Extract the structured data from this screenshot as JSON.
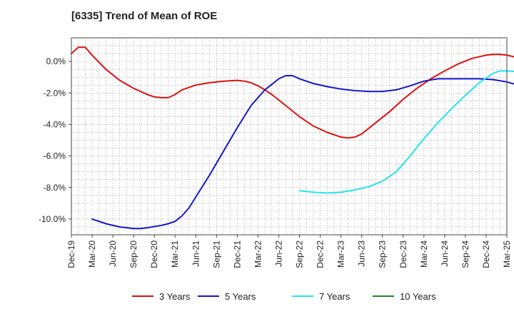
{
  "title": "[6335]  Trend of Mean of ROE",
  "chart_data": {
    "type": "line",
    "title": "[6335]  Trend of Mean of ROE",
    "x_ticks": [
      "Dec-19",
      "Mar-20",
      "Jun-20",
      "Sep-20",
      "Dec-20",
      "Mar-21",
      "Jun-21",
      "Sep-21",
      "Dec-21",
      "Mar-22",
      "Jun-22",
      "Sep-22",
      "Dec-22",
      "Mar-23",
      "Jun-23",
      "Sep-23",
      "Dec-23",
      "Mar-24",
      "Jun-24",
      "Sep-24",
      "Dec-24",
      "Mar-25"
    ],
    "y_ticks": [
      "0.0%",
      "-2.0%",
      "-4.0%",
      "-6.0%",
      "-8.0%",
      "-10.0%"
    ],
    "y_tick_values": [
      0,
      -2,
      -4,
      -6,
      -8,
      -10
    ],
    "ylim": [
      -11,
      1.5
    ],
    "grid": true,
    "legend_position": "bottom",
    "x_unit": "month index from Dec-19",
    "series": [
      {
        "name": "3 Years",
        "color": "#dd1111",
        "points": [
          [
            0,
            0.5
          ],
          [
            1,
            0.9
          ],
          [
            2,
            0.9
          ],
          [
            3,
            0.4
          ],
          [
            5,
            -0.5
          ],
          [
            7,
            -1.2
          ],
          [
            9,
            -1.7
          ],
          [
            11,
            -2.1
          ],
          [
            12,
            -2.25
          ],
          [
            13,
            -2.3
          ],
          [
            14,
            -2.3
          ],
          [
            15,
            -2.1
          ],
          [
            16,
            -1.8
          ],
          [
            18,
            -1.5
          ],
          [
            20,
            -1.35
          ],
          [
            22,
            -1.25
          ],
          [
            24,
            -1.2
          ],
          [
            25,
            -1.25
          ],
          [
            26,
            -1.35
          ],
          [
            27,
            -1.55
          ],
          [
            28,
            -1.8
          ],
          [
            29,
            -2.1
          ],
          [
            31,
            -2.8
          ],
          [
            33,
            -3.5
          ],
          [
            35,
            -4.1
          ],
          [
            37,
            -4.5
          ],
          [
            38,
            -4.65
          ],
          [
            39,
            -4.8
          ],
          [
            40,
            -4.85
          ],
          [
            41,
            -4.8
          ],
          [
            42,
            -4.6
          ],
          [
            44,
            -3.9
          ],
          [
            46,
            -3.2
          ],
          [
            48,
            -2.4
          ],
          [
            50,
            -1.7
          ],
          [
            52,
            -1.1
          ],
          [
            54,
            -0.6
          ],
          [
            56,
            -0.15
          ],
          [
            58,
            0.2
          ],
          [
            60,
            0.4
          ],
          [
            61,
            0.45
          ],
          [
            62,
            0.45
          ],
          [
            63,
            0.4
          ],
          [
            64,
            0.3
          ],
          [
            66,
            0.15
          ],
          [
            68,
            0.12
          ],
          [
            70,
            0.12
          ],
          [
            72,
            0.1
          ],
          [
            73,
            0.15
          ],
          [
            74,
            0.25
          ],
          [
            75,
            0.45
          ]
        ]
      },
      {
        "name": "5 Years",
        "color": "#1515cc",
        "points": [
          [
            3,
            -10.0
          ],
          [
            5,
            -10.3
          ],
          [
            7,
            -10.5
          ],
          [
            9,
            -10.6
          ],
          [
            10,
            -10.6
          ],
          [
            11,
            -10.55
          ],
          [
            13,
            -10.4
          ],
          [
            14,
            -10.3
          ],
          [
            15,
            -10.15
          ],
          [
            16,
            -9.8
          ],
          [
            17,
            -9.3
          ],
          [
            18,
            -8.6
          ],
          [
            20,
            -7.2
          ],
          [
            22,
            -5.7
          ],
          [
            24,
            -4.2
          ],
          [
            26,
            -2.8
          ],
          [
            28,
            -1.8
          ],
          [
            30,
            -1.1
          ],
          [
            31,
            -0.9
          ],
          [
            32,
            -0.9
          ],
          [
            33,
            -1.1
          ],
          [
            35,
            -1.4
          ],
          [
            37,
            -1.6
          ],
          [
            39,
            -1.75
          ],
          [
            41,
            -1.85
          ],
          [
            43,
            -1.9
          ],
          [
            45,
            -1.9
          ],
          [
            47,
            -1.8
          ],
          [
            49,
            -1.55
          ],
          [
            51,
            -1.25
          ],
          [
            53,
            -1.1
          ],
          [
            55,
            -1.1
          ],
          [
            57,
            -1.1
          ],
          [
            59,
            -1.1
          ],
          [
            61,
            -1.15
          ],
          [
            63,
            -1.3
          ],
          [
            65,
            -1.55
          ],
          [
            67,
            -1.75
          ],
          [
            69,
            -1.8
          ],
          [
            71,
            -1.8
          ],
          [
            73,
            -1.75
          ],
          [
            74,
            -1.6
          ],
          [
            75,
            -1.5
          ],
          [
            76,
            -1.3
          ]
        ]
      },
      {
        "name": "7 Years",
        "color": "#22e5ee",
        "points": [
          [
            33,
            -8.2
          ],
          [
            35,
            -8.3
          ],
          [
            37,
            -8.35
          ],
          [
            39,
            -8.3
          ],
          [
            41,
            -8.15
          ],
          [
            43,
            -7.95
          ],
          [
            45,
            -7.6
          ],
          [
            47,
            -7.0
          ],
          [
            49,
            -6.0
          ],
          [
            51,
            -4.9
          ],
          [
            53,
            -3.9
          ],
          [
            55,
            -3.0
          ],
          [
            57,
            -2.15
          ],
          [
            59,
            -1.35
          ],
          [
            61,
            -0.75
          ],
          [
            62,
            -0.6
          ],
          [
            63,
            -0.6
          ],
          [
            65,
            -0.65
          ],
          [
            67,
            -0.65
          ],
          [
            69,
            -0.6
          ],
          [
            71,
            -0.55
          ],
          [
            73,
            -0.5
          ],
          [
            75,
            -0.5
          ],
          [
            76,
            -0.5
          ]
        ]
      },
      {
        "name": "10 Years",
        "color": "#1f8a1f",
        "points": []
      }
    ]
  }
}
